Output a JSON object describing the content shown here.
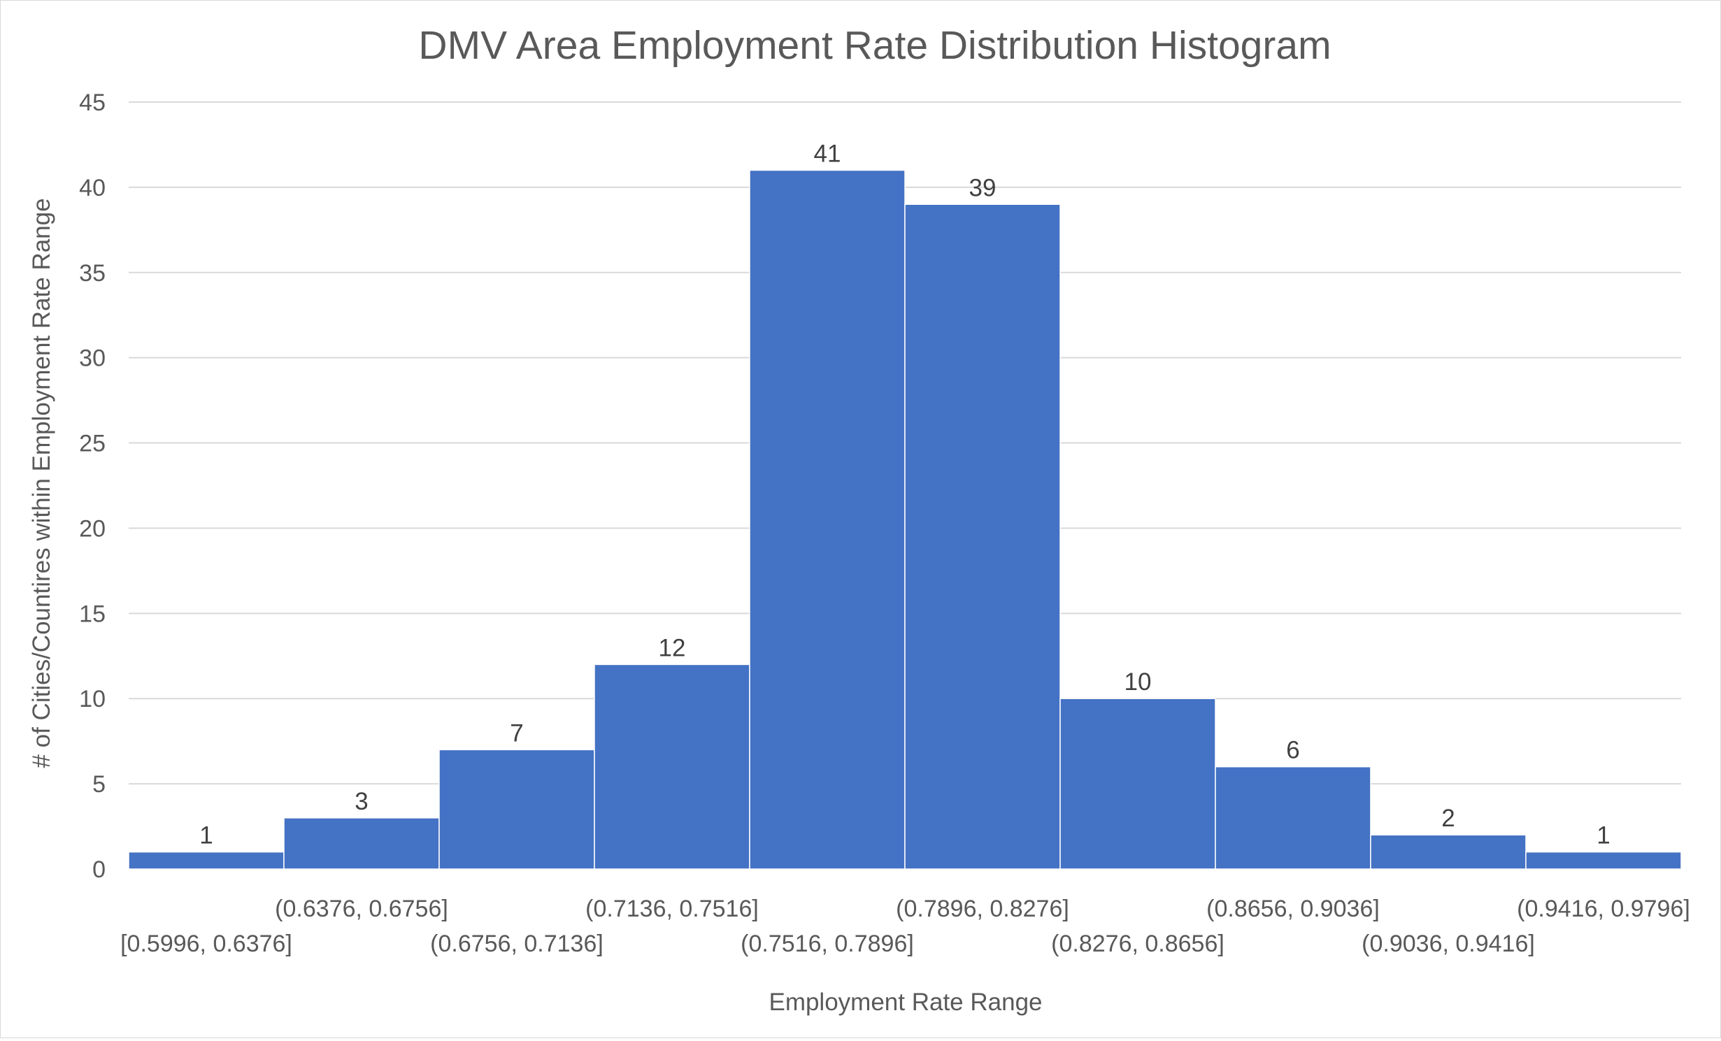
{
  "chart_data": {
    "type": "bar",
    "title": "DMV Area Employment Rate Distribution Histogram",
    "xlabel": "Employment Rate Range",
    "ylabel": "# of  Cities/Countires within Employment Rate Range",
    "ylim": [
      0,
      45
    ],
    "y_ticks": [
      "0",
      "5",
      "10",
      "15",
      "20",
      "25",
      "30",
      "35",
      "40",
      "45"
    ],
    "grid": true,
    "legend": "none",
    "bar_color": "#4472c4",
    "categories": [
      "[0.5996, 0.6376]",
      "(0.6376, 0.6756]",
      "(0.6756, 0.7136]",
      "(0.7136, 0.7516]",
      "(0.7516, 0.7896]",
      "(0.7896, 0.8276]",
      "(0.8276, 0.8656]",
      "(0.8656, 0.9036]",
      "(0.9036, 0.9416]",
      "(0.9416, 0.9796]"
    ],
    "values": [
      1,
      3,
      7,
      12,
      41,
      39,
      10,
      6,
      2,
      1
    ]
  }
}
